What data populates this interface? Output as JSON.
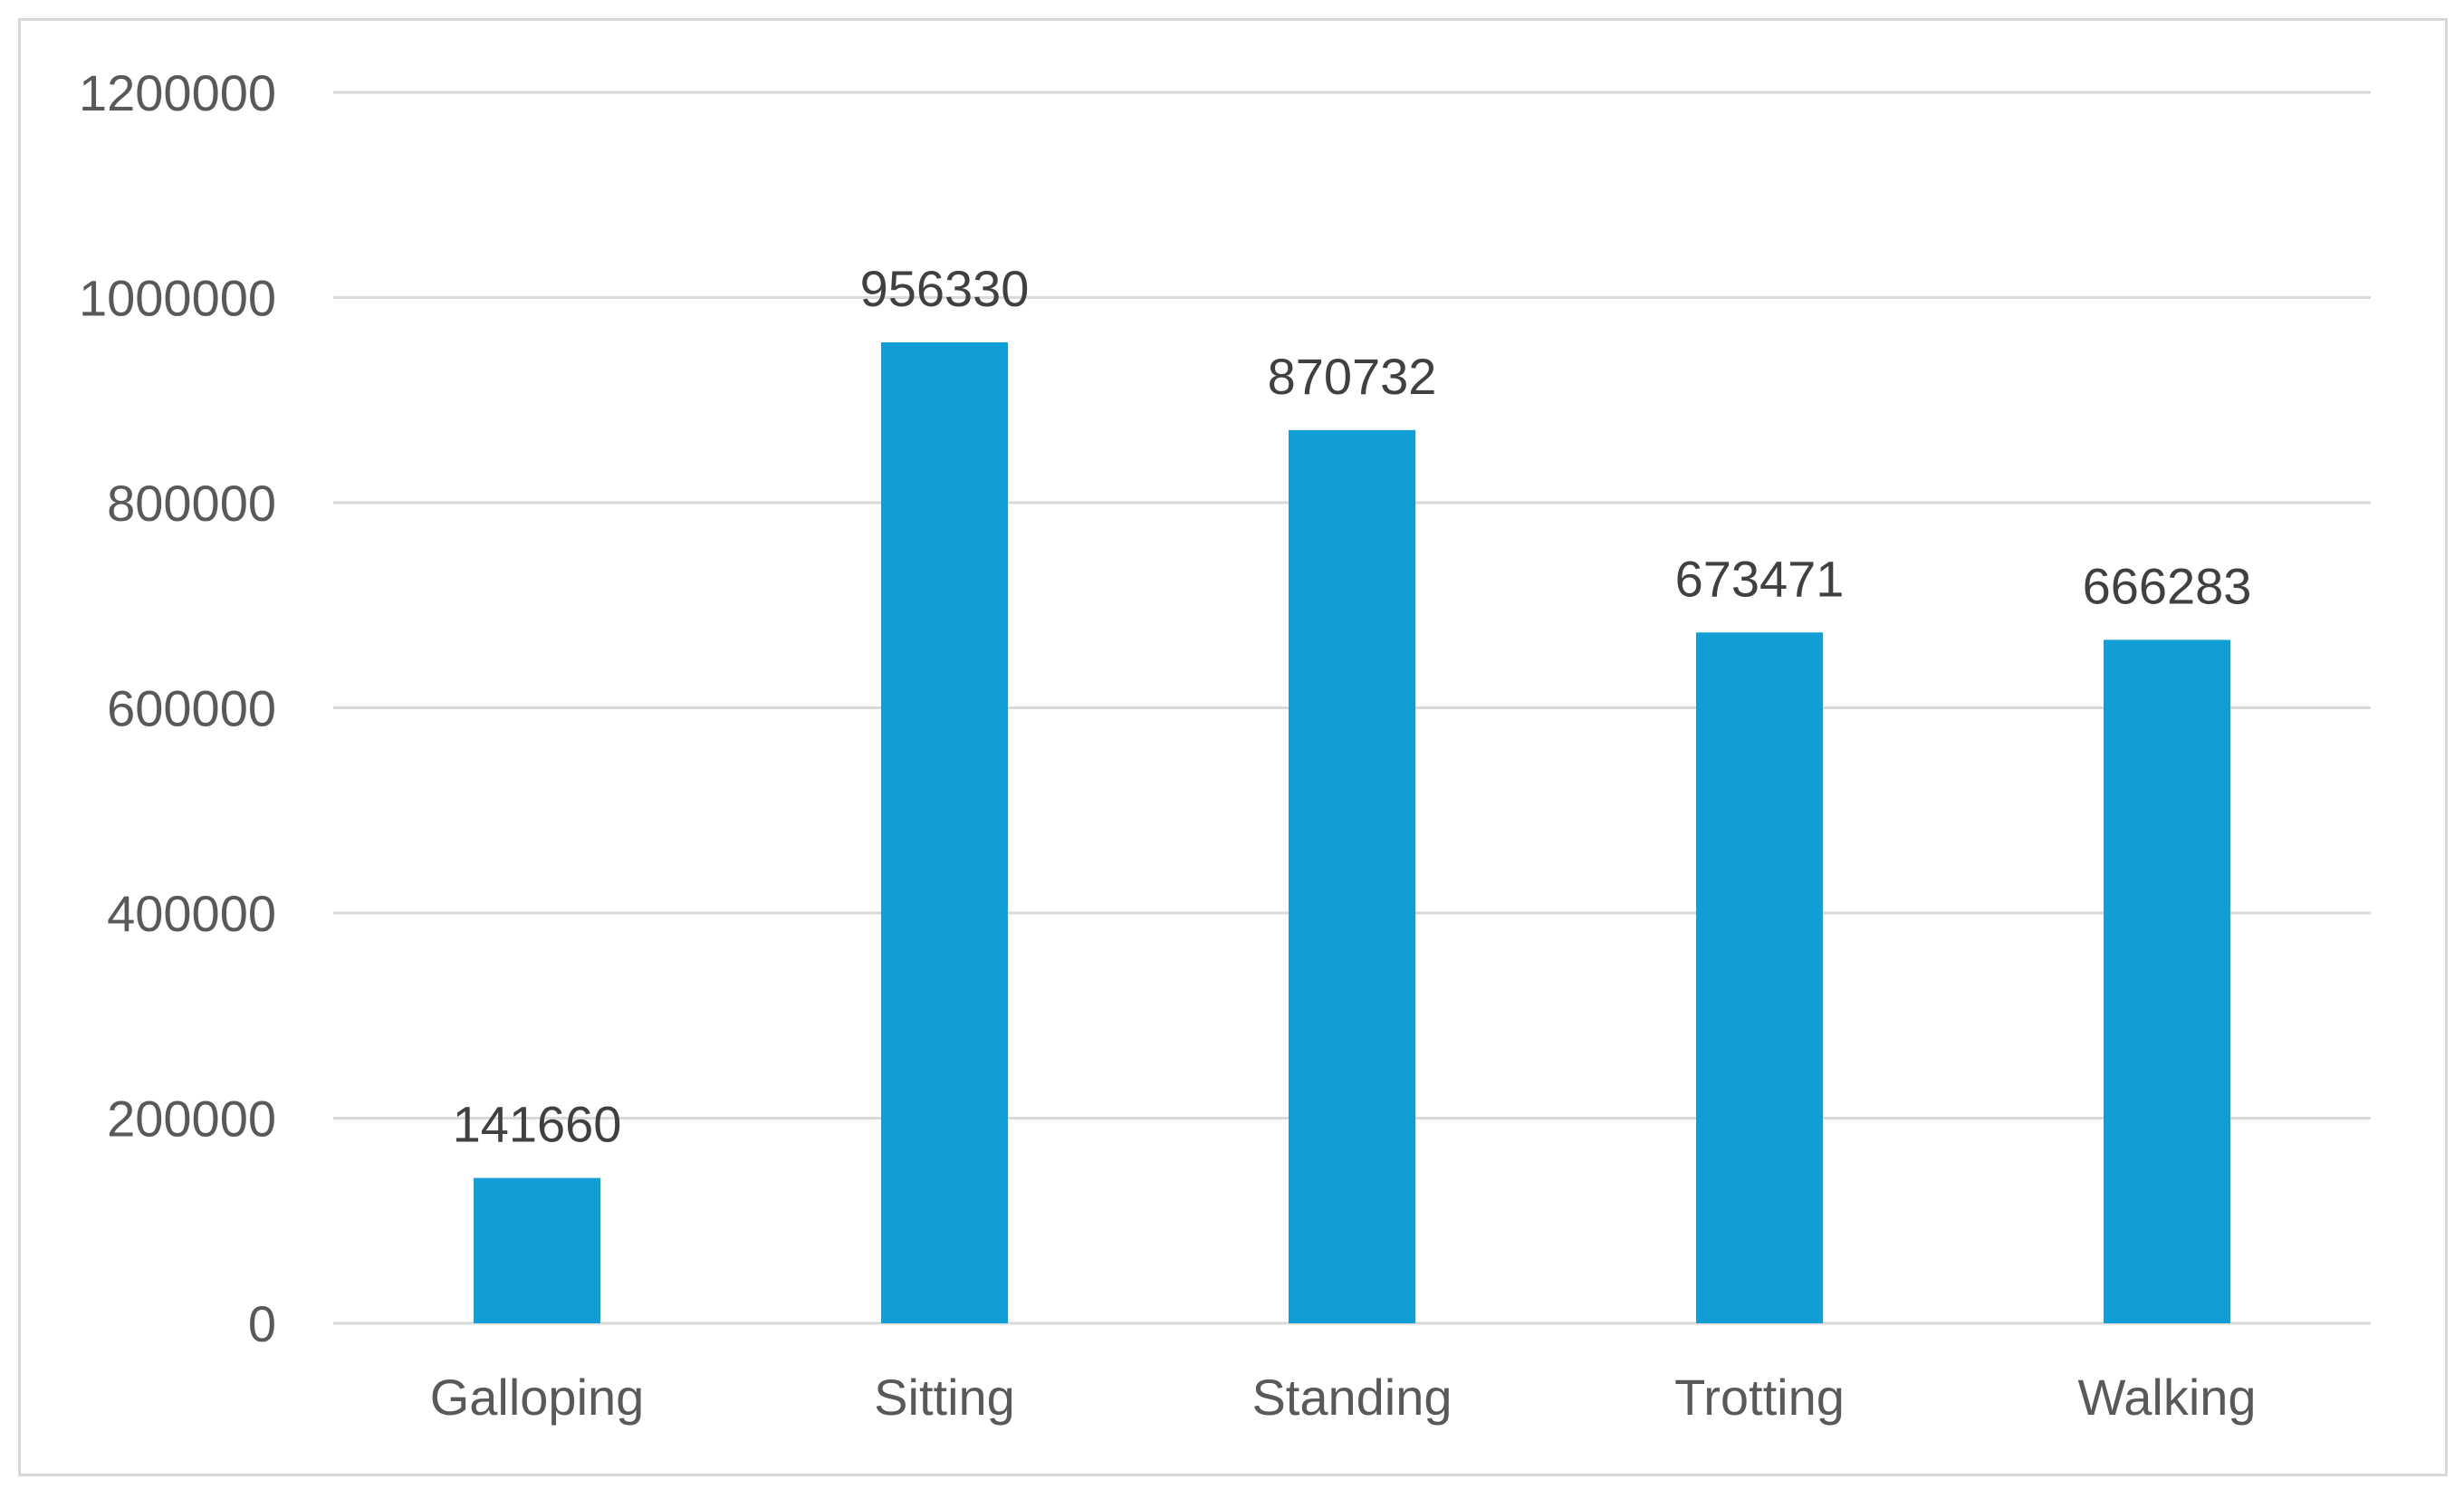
{
  "chart_data": {
    "type": "bar",
    "title": "",
    "xlabel": "",
    "ylabel": "",
    "categories": [
      "Galloping",
      "Sitting",
      "Standing",
      "Trotting",
      "Walking"
    ],
    "values": [
      141660,
      956330,
      870732,
      673471,
      666283
    ],
    "data_labels": [
      "141660",
      "956330",
      "870732",
      "673471",
      "666283"
    ],
    "ylim": [
      0,
      1200000
    ],
    "yticks": [
      0,
      200000,
      400000,
      600000,
      800000,
      1000000,
      1200000
    ],
    "ytick_labels": [
      "0",
      "200000",
      "400000",
      "600000",
      "800000",
      "1000000",
      "1200000"
    ],
    "grid": true,
    "legend": "none",
    "colors": {
      "bar": "#119ed7",
      "grid": "#d9d9d9",
      "axis_text": "#595959",
      "data_label_text": "#404040"
    }
  }
}
